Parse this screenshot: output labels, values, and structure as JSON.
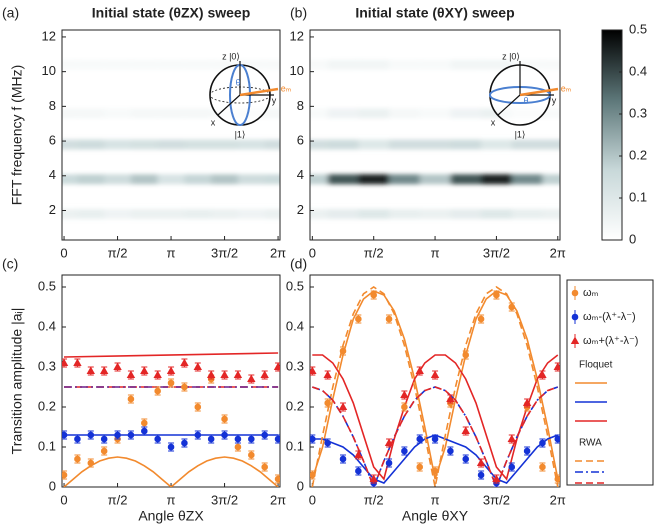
{
  "chart_data": [
    {
      "type": "heatmap",
      "panel_label": "(a)",
      "title": "Initial state (θZX) sweep",
      "y_label": "FFT frequency f (MHz)",
      "xlim": [
        -0.06,
        6.34
      ],
      "xticks": [
        0,
        {
          "value": 1.5708,
          "label": "π/2"
        },
        {
          "value": 3.1416,
          "label": "π"
        },
        {
          "value": 4.7124,
          "label": "3π/2"
        },
        {
          "value": 6.2832,
          "label": "2π"
        }
      ],
      "ylim": [
        0.3,
        12.4
      ],
      "yticks": [
        2,
        4,
        6,
        8,
        10,
        12
      ],
      "angles": [
        0,
        0.7854,
        1.5708,
        2.3562,
        3.1416,
        3.927,
        4.7124,
        5.4978,
        6.2832
      ],
      "bands": [
        {
          "freq": 1.8,
          "intensity": [
            0.06,
            0.07,
            0.05,
            0.06,
            0.06,
            0.07,
            0.06,
            0.05,
            0.06
          ]
        },
        {
          "freq": 3.8,
          "intensity": [
            0.16,
            0.18,
            0.15,
            0.2,
            0.12,
            0.17,
            0.2,
            0.15,
            0.16
          ]
        },
        {
          "freq": 5.8,
          "intensity": [
            0.14,
            0.15,
            0.12,
            0.13,
            0.14,
            0.13,
            0.13,
            0.12,
            0.14
          ]
        },
        {
          "freq": 7.6,
          "intensity": [
            0.03,
            0.03,
            0.02,
            0.03,
            0.03,
            0.03,
            0.02,
            0.03,
            0.03
          ]
        },
        {
          "freq": 10.4,
          "intensity": [
            0.02,
            0.02,
            0.02,
            0.02,
            0.02,
            0.02,
            0.02,
            0.02,
            0.02
          ]
        }
      ],
      "inset_labels": [
        "z |0⟩",
        "|1⟩",
        "x",
        "y",
        "θ",
        "eₘ"
      ]
    },
    {
      "type": "heatmap",
      "panel_label": "(b)",
      "title": "Initial state (θXY) sweep",
      "xlim": [
        -0.06,
        6.34
      ],
      "xticks": [
        0,
        {
          "value": 1.5708,
          "label": "π/2"
        },
        {
          "value": 3.1416,
          "label": "π"
        },
        {
          "value": 4.7124,
          "label": "3π/2"
        },
        {
          "value": 6.2832,
          "label": "2π"
        }
      ],
      "ylim": [
        0.3,
        12.4
      ],
      "yticks": [
        2,
        4,
        6,
        8,
        10,
        12
      ],
      "angles": [
        0,
        0.7854,
        1.5708,
        2.3562,
        3.1416,
        3.927,
        4.7124,
        5.4978,
        6.2832
      ],
      "bands": [
        {
          "freq": 1.8,
          "intensity": [
            0.06,
            0.08,
            0.1,
            0.07,
            0.06,
            0.08,
            0.1,
            0.07,
            0.06
          ]
        },
        {
          "freq": 3.8,
          "intensity": [
            0.18,
            0.38,
            0.45,
            0.3,
            0.2,
            0.38,
            0.45,
            0.3,
            0.18
          ]
        },
        {
          "freq": 5.8,
          "intensity": [
            0.14,
            0.15,
            0.1,
            0.14,
            0.14,
            0.15,
            0.1,
            0.14,
            0.14
          ]
        },
        {
          "freq": 7.6,
          "intensity": [
            0.02,
            0.05,
            0.06,
            0.03,
            0.02,
            0.05,
            0.06,
            0.03,
            0.02
          ]
        },
        {
          "freq": 10.4,
          "intensity": [
            0.02,
            0.04,
            0.04,
            0.02,
            0.02,
            0.04,
            0.04,
            0.02,
            0.02
          ]
        }
      ],
      "inset_labels": [
        "z |0⟩",
        "|1⟩",
        "x",
        "y",
        "θ",
        "eₘ"
      ]
    },
    {
      "type": "colorbar",
      "ylim": [
        0,
        0.5
      ],
      "yticks": [
        0,
        0.1,
        0.2,
        0.3,
        0.4,
        0.5
      ],
      "colormap": [
        "#ffffff",
        "#c8d8d9",
        "#5d7779",
        "#000000"
      ]
    },
    {
      "type": "scatter",
      "panel_label": "(c)",
      "x_label": "Angle θZX",
      "y_label": "Transition amplitude |aᵢ|",
      "xlim": [
        -0.06,
        6.34
      ],
      "xticks": [
        0,
        {
          "value": 1.5708,
          "label": "π/2"
        },
        {
          "value": 3.1416,
          "label": "π"
        },
        {
          "value": 4.7124,
          "label": "3π/2"
        },
        {
          "value": 6.2832,
          "label": "2π"
        }
      ],
      "ylim": [
        0,
        0.53
      ],
      "yticks": [
        0,
        0.1,
        0.2,
        0.3,
        0.4,
        0.5
      ],
      "error": 0.01,
      "x": [
        0,
        0.3927,
        0.7854,
        1.1781,
        1.5708,
        1.9635,
        2.3562,
        2.7489,
        3.1416,
        3.5343,
        3.927,
        4.3197,
        4.7124,
        5.1051,
        5.4978,
        5.8905,
        6.2832
      ],
      "series": [
        {
          "color": "#f28a2e",
          "marker": "circle",
          "values": [
            0.03,
            0.07,
            0.06,
            0.09,
            0.12,
            0.22,
            0.16,
            0.24,
            0.26,
            0.25,
            0.2,
            0.27,
            0.17,
            0.1,
            0.08,
            0.05,
            0.02
          ]
        },
        {
          "color": "#1432d6",
          "marker": "circle",
          "values": [
            0.13,
            0.12,
            0.13,
            0.12,
            0.13,
            0.13,
            0.14,
            0.12,
            0.1,
            0.11,
            0.13,
            0.12,
            0.13,
            0.12,
            0.12,
            0.13,
            0.12
          ]
        },
        {
          "color": "#e32626",
          "marker": "triangle",
          "values": [
            0.31,
            0.31,
            0.29,
            0.29,
            0.3,
            0.28,
            0.29,
            0.28,
            0.29,
            0.31,
            0.3,
            0.28,
            0.28,
            0.28,
            0.27,
            0.28,
            0.3
          ]
        }
      ],
      "line_groups": [
        {
          "lines": [
            {
              "color": "#f28a2e",
              "style": "solid",
              "x": [
                0,
                0.2618,
                0.5236,
                0.7854,
                1.0472,
                1.309,
                1.5708,
                1.8326,
                2.0944,
                2.3562,
                2.618,
                2.8798,
                3.1416,
                3.4034,
                3.6652,
                3.927,
                4.1888,
                4.4506,
                4.7124,
                4.9742,
                5.236,
                5.4978,
                5.7596,
                6.0214,
                6.2832
              ],
              "values": [
                0,
                0.019,
                0.038,
                0.053,
                0.065,
                0.072,
                0.075,
                0.072,
                0.065,
                0.053,
                0.038,
                0.019,
                0,
                0.019,
                0.038,
                0.053,
                0.065,
                0.072,
                0.075,
                0.072,
                0.065,
                0.053,
                0.038,
                0.019,
                0
              ]
            },
            {
              "color": "#1432d6",
              "style": "solid",
              "x": [
                0,
                6.2832
              ],
              "values": [
                0.13,
                0.13
              ]
            },
            {
              "color": "#e32626",
              "style": "solid",
              "x": [
                0,
                6.2832
              ],
              "values": [
                0.325,
                0.335
              ]
            }
          ]
        },
        {
          "lines": [
            {
              "color": "#e32626",
              "style": "dashed",
              "x": [
                0,
                6.2832
              ],
              "values": [
                0.25,
                0.25
              ]
            },
            {
              "color": "#6a1f8a",
              "style": "dashdot",
              "x": [
                0,
                6.2832
              ],
              "values": [
                0.25,
                0.25
              ]
            }
          ]
        }
      ]
    },
    {
      "type": "scatter",
      "panel_label": "(d)",
      "x_label": "Angle θXY",
      "legend": true,
      "xlim": [
        -0.06,
        6.34
      ],
      "xticks": [
        0,
        {
          "value": 1.5708,
          "label": "π/2"
        },
        {
          "value": 3.1416,
          "label": "π"
        },
        {
          "value": 4.7124,
          "label": "3π/2"
        },
        {
          "value": 6.2832,
          "label": "2π"
        }
      ],
      "ylim": [
        0,
        0.53
      ],
      "yticks": [
        0,
        0.1,
        0.2,
        0.3,
        0.4,
        0.5
      ],
      "error": 0.01,
      "x": [
        0,
        0.3927,
        0.7854,
        1.1781,
        1.5708,
        1.9635,
        2.3562,
        2.7489,
        3.1416,
        3.5343,
        3.927,
        4.3197,
        4.7124,
        5.1051,
        5.4978,
        5.8905,
        6.2832
      ],
      "series": [
        {
          "name": "ωₘ",
          "color": "#f28a2e",
          "marker": "circle",
          "values": [
            0.03,
            0.21,
            0.34,
            0.42,
            0.48,
            0.42,
            0.2,
            0.05,
            0.04,
            0.21,
            0.33,
            0.42,
            0.48,
            0.45,
            0.2,
            0.05,
            0.02
          ]
        },
        {
          "name": "ωₘ-(λ⁺-λ⁻)",
          "color": "#1432d6",
          "marker": "circle",
          "values": [
            0.12,
            0.11,
            0.07,
            0.04,
            0.01,
            0.06,
            0.09,
            0.12,
            0.12,
            0.09,
            0.07,
            0.03,
            0.01,
            0.05,
            0.09,
            0.11,
            0.12
          ]
        },
        {
          "name": "ωₘ+(λ⁺-λ⁻)",
          "color": "#e32626",
          "marker": "triangle",
          "values": [
            0.29,
            0.28,
            0.2,
            0.08,
            0.02,
            0.11,
            0.23,
            0.29,
            0.28,
            0.22,
            0.14,
            0.06,
            0.02,
            0.12,
            0.21,
            0.28,
            0.3
          ]
        }
      ],
      "line_groups": [
        {
          "label": "Floquet",
          "lines": [
            {
              "color": "#f28a2e",
              "style": "solid",
              "x": [
                0,
                0.2618,
                0.5236,
                0.7854,
                1.0472,
                1.309,
                1.5708,
                1.8326,
                2.0944,
                2.3562,
                2.618,
                2.8798,
                3.1416,
                3.4034,
                3.6652,
                3.927,
                4.1888,
                4.4506,
                4.7124,
                4.9742,
                5.236,
                5.4978,
                5.7596,
                6.0214,
                6.2832
              ],
              "values": [
                0.02,
                0.1,
                0.22,
                0.33,
                0.42,
                0.47,
                0.49,
                0.48,
                0.44,
                0.37,
                0.27,
                0.15,
                0.02,
                0.1,
                0.22,
                0.33,
                0.42,
                0.47,
                0.49,
                0.48,
                0.44,
                0.37,
                0.27,
                0.15,
                0.02
              ]
            },
            {
              "color": "#1432d6",
              "style": "solid",
              "x": [
                0,
                0.2618,
                0.5236,
                0.7854,
                1.0472,
                1.309,
                1.5708,
                1.8326,
                2.0944,
                2.3562,
                2.618,
                2.8798,
                3.1416,
                3.4034,
                3.6652,
                3.927,
                4.1888,
                4.4506,
                4.7124,
                4.9742,
                5.236,
                5.4978,
                5.7596,
                6.0214,
                6.2832
              ],
              "values": [
                0.12,
                0.12,
                0.11,
                0.1,
                0.08,
                0.05,
                0.02,
                0.01,
                0.04,
                0.07,
                0.1,
                0.12,
                0.13,
                0.12,
                0.11,
                0.1,
                0.08,
                0.05,
                0.02,
                0.01,
                0.04,
                0.07,
                0.1,
                0.12,
                0.13
              ]
            },
            {
              "color": "#e32626",
              "style": "solid",
              "x": [
                0,
                0.2618,
                0.5236,
                0.7854,
                1.0472,
                1.309,
                1.5708,
                1.8326,
                2.0944,
                2.3562,
                2.618,
                2.8798,
                3.1416,
                3.4034,
                3.6652,
                3.927,
                4.1888,
                4.4506,
                4.7124,
                4.9742,
                5.236,
                5.4978,
                5.7596,
                6.0214,
                6.2832
              ],
              "values": [
                0.33,
                0.33,
                0.31,
                0.27,
                0.21,
                0.13,
                0.05,
                0.02,
                0.12,
                0.2,
                0.27,
                0.31,
                0.33,
                0.33,
                0.31,
                0.27,
                0.21,
                0.13,
                0.05,
                0.02,
                0.12,
                0.2,
                0.27,
                0.31,
                0.33
              ]
            }
          ]
        },
        {
          "label": "RWA",
          "lines": [
            {
              "color": "#f28a2e",
              "style": "dashed",
              "x": [
                0,
                0.2618,
                0.5236,
                0.7854,
                1.0472,
                1.309,
                1.5708,
                1.8326,
                2.0944,
                2.3562,
                2.618,
                2.8798,
                3.1416,
                3.4034,
                3.6652,
                3.927,
                4.1888,
                4.4506,
                4.7124,
                4.9742,
                5.236,
                5.4978,
                5.7596,
                6.0214,
                6.2832
              ],
              "values": [
                0,
                0.129,
                0.25,
                0.354,
                0.433,
                0.483,
                0.5,
                0.483,
                0.433,
                0.354,
                0.25,
                0.129,
                0,
                0.129,
                0.25,
                0.354,
                0.433,
                0.483,
                0.5,
                0.483,
                0.433,
                0.354,
                0.25,
                0.129,
                0
              ]
            },
            {
              "color": "#1432d6",
              "style": "dashdot",
              "x": [
                0,
                0.2618,
                0.5236,
                0.7854,
                1.0472,
                1.309,
                1.5708,
                1.8326,
                2.0944,
                2.3562,
                2.618,
                2.8798,
                3.1416,
                3.4034,
                3.6652,
                3.927,
                4.1888,
                4.4506,
                4.7124,
                4.9742,
                5.236,
                5.4978,
                5.7596,
                6.0214,
                6.2832
              ],
              "values": [
                0.25,
                0.241,
                0.217,
                0.177,
                0.125,
                0.065,
                0,
                0.065,
                0.125,
                0.177,
                0.217,
                0.241,
                0.25,
                0.241,
                0.217,
                0.177,
                0.125,
                0.065,
                0,
                0.065,
                0.125,
                0.177,
                0.217,
                0.241,
                0.25
              ]
            },
            {
              "color": "#e32626",
              "style": "dashed",
              "x": [
                0,
                0.2618,
                0.5236,
                0.7854,
                1.0472,
                1.309,
                1.5708,
                1.8326,
                2.0944,
                2.3562,
                2.618,
                2.8798,
                3.1416,
                3.4034,
                3.6652,
                3.927,
                4.1888,
                4.4506,
                4.7124,
                4.9742,
                5.236,
                5.4978,
                5.7596,
                6.0214,
                6.2832
              ],
              "values": [
                0.25,
                0.241,
                0.217,
                0.177,
                0.125,
                0.065,
                0,
                0.065,
                0.125,
                0.177,
                0.217,
                0.241,
                0.25,
                0.241,
                0.217,
                0.177,
                0.125,
                0.065,
                0,
                0.065,
                0.125,
                0.177,
                0.217,
                0.241,
                0.25
              ]
            }
          ]
        }
      ]
    }
  ]
}
